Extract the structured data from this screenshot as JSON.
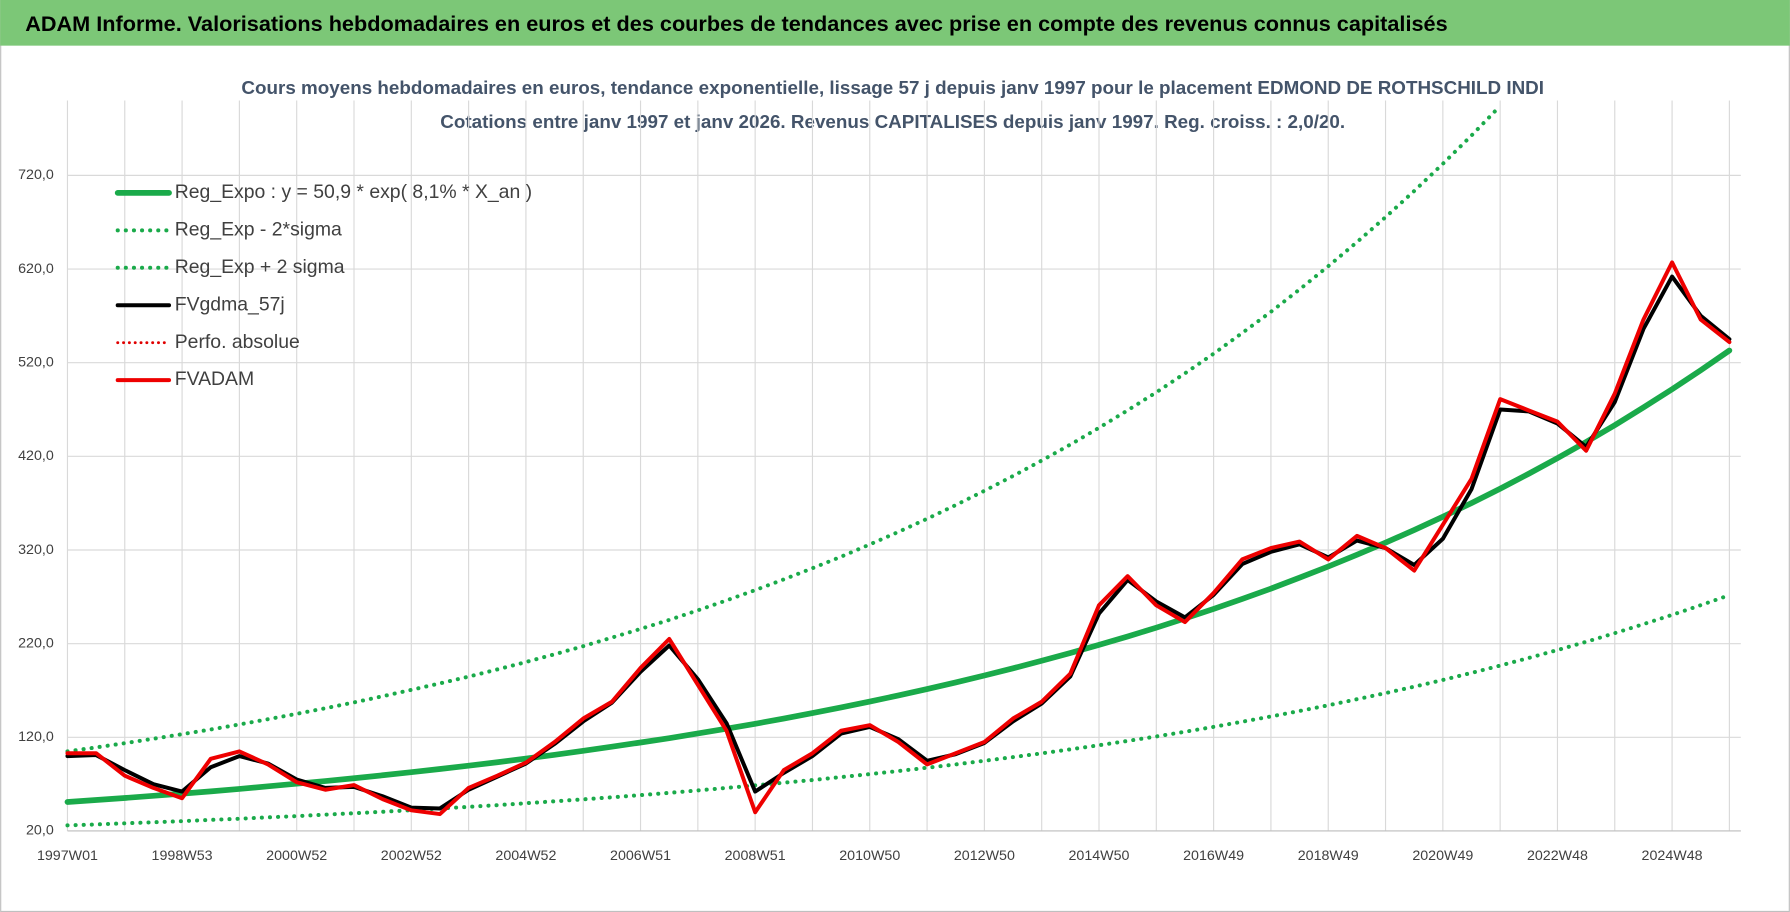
{
  "header": {
    "title": "ADAM Informe. Valorisations hebdomadaires en euros et des courbes de tendances avec prise en compte des revenus connus capitalisés"
  },
  "chart_data": {
    "type": "line",
    "title": "Cours moyens hebdomadaires en euros, tendance exponentielle, lissage 57 j depuis janv 1997  pour le  placement EDMOND DE ROTHSCHILD INDI",
    "subtitle": "Cotations entre janv 1997 et janv 2026. Revenus CAPITALISES depuis janv 1997. Reg. croiss. : 2,0/20.",
    "categories": [
      "1997W01",
      null,
      null,
      null,
      "1998W53",
      null,
      null,
      null,
      "2000W52",
      null,
      null,
      null,
      "2002W52",
      null,
      null,
      null,
      "2004W52",
      null,
      null,
      null,
      "2006W51",
      null,
      null,
      null,
      "2008W51",
      null,
      null,
      null,
      "2010W50",
      null,
      null,
      null,
      "2012W50",
      null,
      null,
      null,
      "2014W50",
      null,
      null,
      null,
      "2016W49",
      null,
      null,
      null,
      "2018W49",
      null,
      null,
      null,
      "2020W49",
      null,
      null,
      null,
      "2022W48",
      null,
      null,
      null,
      "2024W48",
      null,
      null
    ],
    "ylim": [
      20,
      800
    ],
    "yticks": [
      {
        "value": 20,
        "label": "20,0"
      },
      {
        "value": 120,
        "label": "120,0"
      },
      {
        "value": 220,
        "label": "220,0"
      },
      {
        "value": 320,
        "label": "320,0"
      },
      {
        "value": 420,
        "label": "420,0"
      },
      {
        "value": 520,
        "label": "520,0"
      },
      {
        "value": 620,
        "label": "620,0"
      },
      {
        "value": 720,
        "label": "720,0"
      }
    ],
    "grid": true,
    "legend": "top-left",
    "series": [
      {
        "name": "Reg_Expo : y = 50,9 * exp( 8,1% *  X_an )",
        "color": "#1aaa4a",
        "style": "solid",
        "width": 5,
        "values": [
          50.9,
          53.0,
          55.2,
          57.5,
          59.9,
          62.3,
          64.9,
          67.6,
          70.4,
          73.3,
          76.3,
          79.5,
          82.8,
          86.2,
          89.7,
          93.4,
          97.3,
          101.3,
          105.5,
          109.9,
          114.4,
          119.1,
          124.1,
          129.2,
          134.5,
          140.1,
          145.9,
          151.9,
          158.2,
          164.7,
          171.5,
          178.6,
          186.0,
          193.7,
          201.7,
          210.0,
          218.7,
          227.7,
          237.1,
          246.9,
          257.1,
          267.8,
          278.8,
          290.4,
          302.4,
          314.9,
          327.9,
          341.4,
          355.5,
          370.2,
          385.5,
          401.5,
          418.1,
          435.3,
          453.3,
          472.1,
          491.6,
          511.9,
          533.0
        ]
      },
      {
        "name": "Reg_Exp - 2*sigma",
        "color": "#1aaa4a",
        "style": "dotted",
        "width": 3.5,
        "values": [
          26.0,
          27.0,
          28.2,
          29.3,
          30.5,
          31.8,
          33.1,
          34.5,
          35.9,
          37.4,
          38.9,
          40.5,
          42.2,
          44.0,
          45.7,
          47.6,
          49.6,
          51.7,
          53.8,
          56.0,
          58.3,
          60.7,
          63.3,
          65.9,
          68.6,
          71.5,
          74.4,
          77.5,
          80.7,
          84.0,
          87.5,
          91.1,
          94.9,
          98.8,
          102.9,
          107.1,
          111.5,
          116.1,
          120.9,
          125.9,
          131.1,
          136.6,
          142.2,
          148.1,
          154.2,
          160.6,
          167.2,
          174.1,
          181.3,
          188.8,
          196.6,
          204.8,
          213.2,
          222.0,
          231.2,
          240.8,
          250.7,
          261.1,
          271.8
        ]
      },
      {
        "name": "Reg_Exp + 2 sigma",
        "color": "#1aaa4a",
        "style": "dotted",
        "width": 3.5,
        "values": [
          104.9,
          109.2,
          113.7,
          118.5,
          123.4,
          128.3,
          133.7,
          139.3,
          145.0,
          151.0,
          157.2,
          163.8,
          170.6,
          177.6,
          184.8,
          192.4,
          200.4,
          208.7,
          217.3,
          226.4,
          235.7,
          245.3,
          255.6,
          266.2,
          277.1,
          288.6,
          300.6,
          312.9,
          325.9,
          339.3,
          353.3,
          367.9,
          383.2,
          399.0,
          415.5,
          432.6,
          450.5,
          469.1,
          488.4,
          508.6,
          529.6,
          551.7,
          574.3,
          598.2,
          623.0,
          648.7,
          675.5,
          703.3,
          732.3,
          762.6,
          794.1,
          null,
          null,
          null,
          null,
          null,
          null,
          null,
          null
        ]
      },
      {
        "name": "FVgdma_57j",
        "color": "#000000",
        "style": "solid",
        "width": 3.5,
        "values": [
          100,
          101,
          85,
          70,
          62,
          88,
          100,
          92,
          75,
          66,
          67,
          57,
          45,
          44,
          64,
          78,
          92,
          113,
          137,
          157,
          190,
          218,
          182,
          135,
          62,
          82,
          100,
          124,
          131,
          118,
          95,
          102,
          114,
          137,
          156,
          185,
          252,
          288,
          265,
          248,
          272,
          305,
          318,
          326,
          312,
          330,
          322,
          304,
          332,
          385,
          470,
          468,
          455,
          430,
          478,
          556,
          612,
          570,
          545
        ]
      },
      {
        "name": "Perfo. absolue",
        "color": "#e00000",
        "style": "dotted",
        "width": 2.5,
        "values": [
          103,
          103,
          79,
          66,
          55,
          97,
          105,
          91,
          72,
          64,
          69,
          54,
          42,
          38,
          66,
          79,
          93,
          115,
          140,
          158,
          194,
          225,
          176,
          127,
          40,
          85,
          103,
          127,
          133,
          115,
          91,
          103,
          115,
          140,
          158,
          188,
          261,
          292,
          261,
          243,
          274,
          310,
          322,
          329,
          310,
          335,
          322,
          298,
          347,
          396,
          481,
          469,
          457,
          426,
          487,
          566,
          627,
          566,
          542
        ]
      },
      {
        "name": "FVADAM",
        "color": "#ee0000",
        "style": "solid",
        "width": 3.5,
        "values": [
          103,
          103,
          79,
          66,
          55,
          97,
          105,
          91,
          72,
          64,
          69,
          54,
          42,
          38,
          66,
          79,
          93,
          115,
          140,
          158,
          194,
          225,
          176,
          127,
          40,
          85,
          103,
          127,
          133,
          115,
          91,
          103,
          115,
          140,
          158,
          188,
          261,
          292,
          261,
          243,
          274,
          310,
          322,
          329,
          310,
          335,
          322,
          298,
          347,
          396,
          481,
          469,
          457,
          426,
          487,
          566,
          627,
          566,
          542
        ]
      }
    ]
  }
}
